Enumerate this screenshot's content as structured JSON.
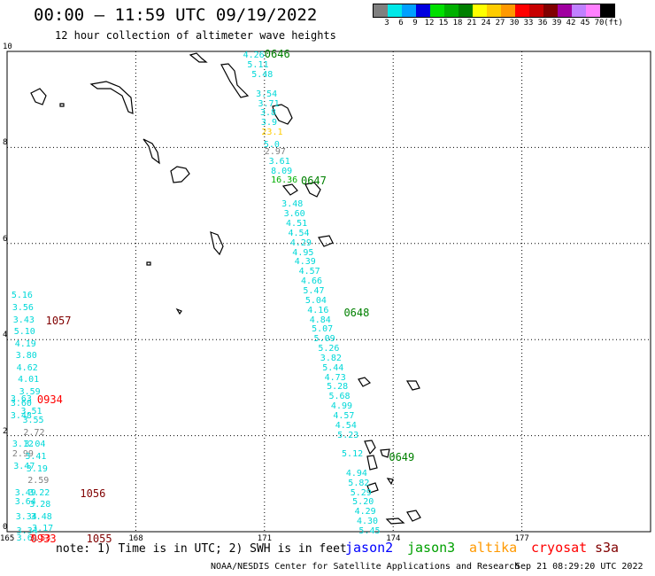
{
  "title": "00:00 – 11:59 UTC 09/19/2022",
  "subtitle": "12 hour collection of altimeter wave heights",
  "legend": {
    "colors": [
      "#808080",
      "#00e8e8",
      "#00a0ff",
      "#0000e0",
      "#00e000",
      "#00b000",
      "#008000",
      "#ffff00",
      "#ffcc00",
      "#ff9900",
      "#ff0000",
      "#c80000",
      "#800000",
      "#a000a0",
      "#c080ff",
      "#ff80ff",
      "#000000"
    ],
    "labels": [
      "3",
      "6",
      "9",
      "12",
      "15",
      "18",
      "21",
      "24",
      "27",
      "30",
      "33",
      "36",
      "39",
      "42",
      "45",
      "70",
      "(ft)"
    ]
  },
  "axes": {
    "lon_labels": [
      "165",
      "168",
      "171",
      "174",
      "177"
    ],
    "lat_labels": [
      "0",
      "2",
      "4",
      "6",
      "8",
      "10"
    ]
  },
  "observations": [
    {
      "text": "4.26",
      "color": "#00d8d8",
      "lon": 170.5,
      "lat": 9.9
    },
    {
      "text": "5.11",
      "color": "#00d8d8",
      "lon": 170.6,
      "lat": 9.7
    },
    {
      "text": "5.48",
      "color": "#00d8d8",
      "lon": 170.7,
      "lat": 9.5
    },
    {
      "text": "3.54",
      "color": "#00d8d8",
      "lon": 170.8,
      "lat": 9.1
    },
    {
      "text": "3.71",
      "color": "#00d8d8",
      "lon": 170.85,
      "lat": 8.9
    },
    {
      "text": "3.8",
      "color": "#00d8d8",
      "lon": 170.9,
      "lat": 8.7
    },
    {
      "text": "3.9",
      "color": "#00d8d8",
      "lon": 170.92,
      "lat": 8.5
    },
    {
      "text": "23.1",
      "color": "#ffcc00",
      "lon": 170.93,
      "lat": 8.3
    },
    {
      "text": "5.0",
      "color": "#00d8d8",
      "lon": 170.98,
      "lat": 8.05
    },
    {
      "text": "2.97",
      "color": "#808080",
      "lon": 171.0,
      "lat": 7.9
    },
    {
      "text": "3.61",
      "color": "#00d8d8",
      "lon": 171.1,
      "lat": 7.7
    },
    {
      "text": "8.09",
      "color": "#00d8d8",
      "lon": 171.15,
      "lat": 7.5
    },
    {
      "text": "16.36",
      "color": "#00b000",
      "lon": 171.15,
      "lat": 7.3
    },
    {
      "text": "3.48",
      "color": "#00d8d8",
      "lon": 171.4,
      "lat": 6.8
    },
    {
      "text": "3.60",
      "color": "#00d8d8",
      "lon": 171.45,
      "lat": 6.6
    },
    {
      "text": "4.51",
      "color": "#00d8d8",
      "lon": 171.5,
      "lat": 6.4
    },
    {
      "text": "4.54",
      "color": "#00d8d8",
      "lon": 171.55,
      "lat": 6.2
    },
    {
      "text": "4.29",
      "color": "#00d8d8",
      "lon": 171.6,
      "lat": 6.0
    },
    {
      "text": "4.95",
      "color": "#00d8d8",
      "lon": 171.65,
      "lat": 5.8
    },
    {
      "text": "4.39",
      "color": "#00d8d8",
      "lon": 171.7,
      "lat": 5.6
    },
    {
      "text": "4.57",
      "color": "#00d8d8",
      "lon": 171.8,
      "lat": 5.4
    },
    {
      "text": "4.66",
      "color": "#00d8d8",
      "lon": 171.85,
      "lat": 5.2
    },
    {
      "text": "5.47",
      "color": "#00d8d8",
      "lon": 171.9,
      "lat": 5.0
    },
    {
      "text": "5.04",
      "color": "#00d8d8",
      "lon": 171.95,
      "lat": 4.8
    },
    {
      "text": "4.16",
      "color": "#00d8d8",
      "lon": 172.0,
      "lat": 4.6
    },
    {
      "text": "4.84",
      "color": "#00d8d8",
      "lon": 172.05,
      "lat": 4.4
    },
    {
      "text": "5.07",
      "color": "#00d8d8",
      "lon": 172.1,
      "lat": 4.2
    },
    {
      "text": "5.09",
      "color": "#00d8d8",
      "lon": 172.15,
      "lat": 4.0
    },
    {
      "text": "5.26",
      "color": "#00d8d8",
      "lon": 172.25,
      "lat": 3.8
    },
    {
      "text": "3.82",
      "color": "#00d8d8",
      "lon": 172.3,
      "lat": 3.6
    },
    {
      "text": "5.44",
      "color": "#00d8d8",
      "lon": 172.35,
      "lat": 3.4
    },
    {
      "text": "4.73",
      "color": "#00d8d8",
      "lon": 172.4,
      "lat": 3.2
    },
    {
      "text": "5.28",
      "color": "#00d8d8",
      "lon": 172.45,
      "lat": 3.0
    },
    {
      "text": "5.68",
      "color": "#00d8d8",
      "lon": 172.5,
      "lat": 2.8
    },
    {
      "text": "4.99",
      "color": "#00d8d8",
      "lon": 172.55,
      "lat": 2.6
    },
    {
      "text": "4.57",
      "color": "#00d8d8",
      "lon": 172.6,
      "lat": 2.4
    },
    {
      "text": "4.54",
      "color": "#00d8d8",
      "lon": 172.65,
      "lat": 2.2
    },
    {
      "text": "5.23",
      "color": "#00d8d8",
      "lon": 172.7,
      "lat": 2.0
    },
    {
      "text": "5.12",
      "color": "#00d8d8",
      "lon": 172.8,
      "lat": 1.6
    },
    {
      "text": "4.94",
      "color": "#00d8d8",
      "lon": 172.9,
      "lat": 1.2
    },
    {
      "text": "5.82",
      "color": "#00d8d8",
      "lon": 172.95,
      "lat": 1.0
    },
    {
      "text": "5.29",
      "color": "#00d8d8",
      "lon": 173.0,
      "lat": 0.8
    },
    {
      "text": "5.20",
      "color": "#00d8d8",
      "lon": 173.05,
      "lat": 0.6
    },
    {
      "text": "4.29",
      "color": "#00d8d8",
      "lon": 173.1,
      "lat": 0.4
    },
    {
      "text": "4.30",
      "color": "#00d8d8",
      "lon": 173.15,
      "lat": 0.2
    },
    {
      "text": "5.45",
      "color": "#00d8d8",
      "lon": 173.2,
      "lat": 0.0
    },
    {
      "text": "5.16",
      "color": "#00d8d8",
      "lon": 165.1,
      "lat": 4.9
    },
    {
      "text": "3.56",
      "color": "#00d8d8",
      "lon": 165.12,
      "lat": 4.65
    },
    {
      "text": "3.43",
      "color": "#00d8d8",
      "lon": 165.14,
      "lat": 4.4
    },
    {
      "text": "5.10",
      "color": "#00d8d8",
      "lon": 165.16,
      "lat": 4.15
    },
    {
      "text": "4.19",
      "color": "#00d8d8",
      "lon": 165.18,
      "lat": 3.9
    },
    {
      "text": "3.80",
      "color": "#00d8d8",
      "lon": 165.2,
      "lat": 3.65
    },
    {
      "text": "4.62",
      "color": "#00d8d8",
      "lon": 165.22,
      "lat": 3.4
    },
    {
      "text": "4.01",
      "color": "#00d8d8",
      "lon": 165.25,
      "lat": 3.15
    },
    {
      "text": "3.59",
      "color": "#00d8d8",
      "lon": 165.28,
      "lat": 2.9
    },
    {
      "text": "3.63",
      "color": "#00d8d8",
      "lon": 165.08,
      "lat": 2.75
    },
    {
      "text": "3.60",
      "color": "#00d8d8",
      "lon": 165.08,
      "lat": 2.65
    },
    {
      "text": "3.51",
      "color": "#00d8d8",
      "lon": 165.32,
      "lat": 2.5
    },
    {
      "text": "3.48",
      "color": "#00d8d8",
      "lon": 165.08,
      "lat": 2.4
    },
    {
      "text": "3.55",
      "color": "#00d8d8",
      "lon": 165.36,
      "lat": 2.3
    },
    {
      "text": "2.72",
      "color": "#808080",
      "lon": 165.38,
      "lat": 2.05
    },
    {
      "text": "3.04",
      "color": "#00d8d8",
      "lon": 165.4,
      "lat": 1.8
    },
    {
      "text": "3.12",
      "color": "#00d8d8",
      "lon": 165.12,
      "lat": 1.8
    },
    {
      "text": "2.99",
      "color": "#808080",
      "lon": 165.12,
      "lat": 1.6
    },
    {
      "text": "3.41",
      "color": "#00d8d8",
      "lon": 165.42,
      "lat": 1.55
    },
    {
      "text": "3.47",
      "color": "#00d8d8",
      "lon": 165.15,
      "lat": 1.35
    },
    {
      "text": "3.19",
      "color": "#00d8d8",
      "lon": 165.45,
      "lat": 1.3
    },
    {
      "text": "2.59",
      "color": "#808080",
      "lon": 165.48,
      "lat": 1.05
    },
    {
      "text": "3.49",
      "color": "#00d8d8",
      "lon": 165.18,
      "lat": 0.8
    },
    {
      "text": "3.22",
      "color": "#00d8d8",
      "lon": 165.5,
      "lat": 0.8
    },
    {
      "text": "3.64",
      "color": "#00d8d8",
      "lon": 165.18,
      "lat": 0.6
    },
    {
      "text": "3.28",
      "color": "#00d8d8",
      "lon": 165.52,
      "lat": 0.55
    },
    {
      "text": "3.48",
      "color": "#00d8d8",
      "lon": 165.55,
      "lat": 0.3
    },
    {
      "text": "3.34",
      "color": "#00d8d8",
      "lon": 165.2,
      "lat": 0.3
    },
    {
      "text": "3.17",
      "color": "#00d8d8",
      "lon": 165.58,
      "lat": 0.05
    },
    {
      "text": "3.34",
      "color": "#00d8d8",
      "lon": 165.22,
      "lat": 0.0
    },
    {
      "text": "3.61",
      "color": "#00d8d8",
      "lon": 165.22,
      "lat": -0.15
    },
    {
      "text": "3.53",
      "color": "#ff0000",
      "lon": 165.52,
      "lat": -0.15
    }
  ],
  "time_marks": [
    {
      "text": "0646",
      "color": "#008000",
      "lon": 171.0,
      "lat": 9.95
    },
    {
      "text": "0647",
      "color": "#008000",
      "lon": 171.85,
      "lat": 7.3
    },
    {
      "text": "0648",
      "color": "#008000",
      "lon": 172.85,
      "lat": 4.55
    },
    {
      "text": "0649",
      "color": "#008000",
      "lon": 173.9,
      "lat": 1.55
    },
    {
      "text": "1057",
      "color": "#800000",
      "lon": 165.9,
      "lat": 4.4
    },
    {
      "text": "0934",
      "color": "#ff0000",
      "lon": 165.7,
      "lat": 2.75
    },
    {
      "text": "1056",
      "color": "#800000",
      "lon": 166.7,
      "lat": 0.8
    },
    {
      "text": "0933",
      "color": "#ff0000",
      "lon": 165.55,
      "lat": -0.15
    },
    {
      "text": "1055",
      "color": "#800000",
      "lon": 166.85,
      "lat": -0.15
    }
  ],
  "footnote": "note:  1) Time is in UTC; 2) SWH is in feet",
  "satellites": [
    {
      "name": "jason2",
      "color": "#0000ff"
    },
    {
      "name": "jason3",
      "color": "#00a000"
    },
    {
      "name": "altika",
      "color": "#ff9900"
    },
    {
      "name": "cryosat",
      "color": "#ff0000"
    },
    {
      "name": "s3a",
      "color": "#800000"
    }
  ],
  "credit": "NOAA/NESDIS Center for Satellite Applications and Research",
  "timestamp": "Sep 21 08:29:20 UTC 2022"
}
